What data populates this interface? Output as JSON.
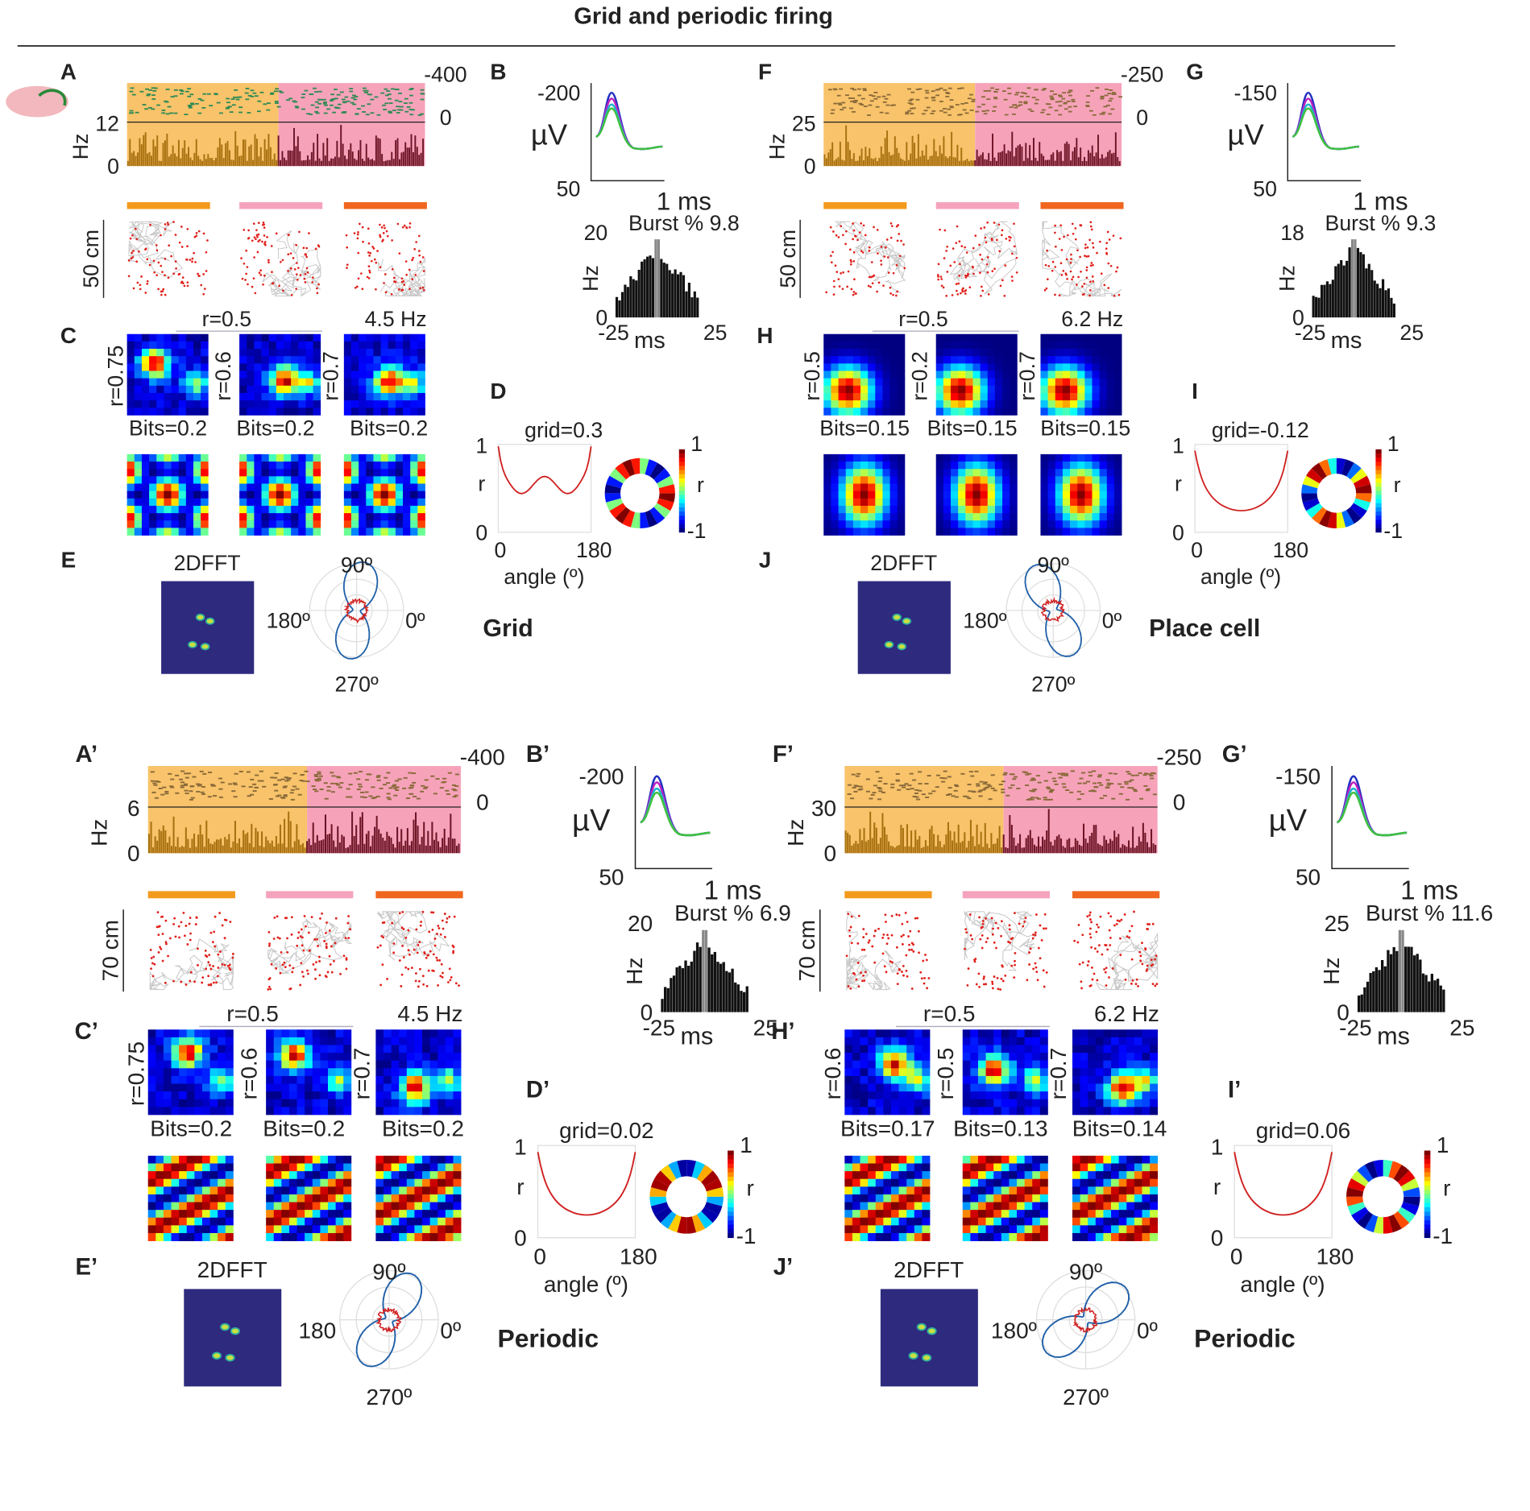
{
  "title": "Grid and periodic firing",
  "quadrants": {
    "top_left": {
      "letters": [
        "A",
        "B",
        "C",
        "D",
        "E"
      ],
      "raster": {
        "rate_ticks": [
          "12",
          "0"
        ],
        "rate_unit": "Hz",
        "volt_ticks": [
          "-400",
          "0"
        ]
      },
      "scale_bar": "50 cm",
      "waveform": {
        "ticks": [
          "-200",
          "50"
        ],
        "unit": "µV",
        "time": "1 ms"
      },
      "burst": {
        "label": "Burst % 9.8",
        "ticks": [
          "20",
          "0"
        ],
        "unit": "Hz",
        "xticks": [
          "-25",
          "25"
        ],
        "xunit": "ms"
      },
      "ratemap": {
        "r": "r=0.5",
        "rate": "4.5 Hz",
        "map_r": [
          "r=0.75",
          "r=0.6",
          "r=0.7"
        ],
        "bits": [
          "Bits=0.2",
          "Bits=0.2",
          "Bits=0.2"
        ]
      },
      "gridness": {
        "score": "grid=0.3",
        "yticks": [
          "1",
          "0"
        ],
        "ylabel": "r",
        "xticks": [
          "0",
          "180"
        ],
        "xlabel": "angle (º)",
        "colorbar": {
          "ticks": [
            "1",
            "-1"
          ],
          "label": "r"
        }
      },
      "fft": {
        "title": "2DFFT",
        "angles": [
          "90º",
          "180º",
          "0º",
          "270º"
        ]
      },
      "class": "Grid"
    },
    "top_right": {
      "letters": [
        "F",
        "G",
        "H",
        "I",
        "J"
      ],
      "raster": {
        "rate_ticks": [
          "25",
          "0"
        ],
        "rate_unit": "Hz",
        "volt_ticks": [
          "-250",
          "0"
        ]
      },
      "scale_bar": "50 cm",
      "waveform": {
        "ticks": [
          "-150",
          "50"
        ],
        "unit": "µV",
        "time": "1 ms"
      },
      "burst": {
        "label": "Burst % 9.3",
        "ticks": [
          "18",
          "0"
        ],
        "unit": "Hz",
        "xticks": [
          "-25",
          "25"
        ],
        "xunit": "ms"
      },
      "ratemap": {
        "r": "r=0.5",
        "rate": "6.2 Hz",
        "map_r": [
          "r=0.5",
          "r=0.2",
          "r=0.7"
        ],
        "bits": [
          "Bits=0.15",
          "Bits=0.15",
          "Bits=0.15"
        ]
      },
      "gridness": {
        "score": "grid=-0.12",
        "yticks": [
          "1",
          "0"
        ],
        "ylabel": "r",
        "xticks": [
          "0",
          "180"
        ],
        "xlabel": "angle (º)",
        "colorbar": {
          "ticks": [
            "1",
            "-1"
          ],
          "label": "r"
        }
      },
      "fft": {
        "title": "2DFFT",
        "angles": [
          "90º",
          "180º",
          "0º",
          "270º"
        ]
      },
      "class": "Place cell"
    },
    "bottom_left": {
      "letters": [
        "A’",
        "B’",
        "C’",
        "D’",
        "E’"
      ],
      "raster": {
        "rate_ticks": [
          "6",
          "0"
        ],
        "rate_unit": "Hz",
        "volt_ticks": [
          "-400",
          "0"
        ]
      },
      "scale_bar": "70 cm",
      "waveform": {
        "ticks": [
          "-200",
          "50"
        ],
        "unit": "µV",
        "time": "1 ms"
      },
      "burst": {
        "label": "Burst % 6.9",
        "ticks": [
          "20",
          "0"
        ],
        "unit": "Hz",
        "xticks": [
          "-25",
          "25"
        ],
        "xunit": "ms"
      },
      "ratemap": {
        "r": "r=0.5",
        "rate": "4.5 Hz",
        "map_r": [
          "r=0.75",
          "r=0.6",
          "r=0.7"
        ],
        "bits": [
          "Bits=0.2",
          "Bits=0.2",
          "Bits=0.2"
        ]
      },
      "gridness": {
        "score": "grid=0.02",
        "yticks": [
          "1",
          "0"
        ],
        "ylabel": "r",
        "xticks": [
          "0",
          "180"
        ],
        "xlabel": "angle (º)",
        "colorbar": {
          "ticks": [
            "1",
            "-1"
          ],
          "label": "r"
        }
      },
      "fft": {
        "title": "2DFFT",
        "angles": [
          "90º",
          "180",
          "0º",
          "270º"
        ]
      },
      "class": "Periodic"
    },
    "bottom_right": {
      "letters": [
        "F’",
        "G’",
        "H’",
        "I’",
        "J’"
      ],
      "raster": {
        "rate_ticks": [
          "30",
          "0"
        ],
        "rate_unit": "Hz",
        "volt_ticks": [
          "-250",
          "0"
        ]
      },
      "scale_bar": "70 cm",
      "waveform": {
        "ticks": [
          "-150",
          "50"
        ],
        "unit": "µV",
        "time": "1 ms"
      },
      "burst": {
        "label": "Burst % 11.6",
        "ticks": [
          "25",
          "0"
        ],
        "unit": "Hz",
        "xticks": [
          "-25",
          "25"
        ],
        "xunit": "ms"
      },
      "ratemap": {
        "r": "r=0.5",
        "rate": "6.2 Hz",
        "map_r": [
          "r=0.6",
          "r=0.5",
          "r=0.7"
        ],
        "bits": [
          "Bits=0.17",
          "Bits=0.13",
          "Bits=0.14"
        ]
      },
      "gridness": {
        "score": "grid=0.06",
        "yticks": [
          "1",
          "0"
        ],
        "ylabel": "r",
        "xticks": [
          "0",
          "180"
        ],
        "xlabel": "angle (º)",
        "colorbar": {
          "ticks": [
            "1",
            "-1"
          ],
          "label": "r"
        }
      },
      "fft": {
        "title": "2DFFT",
        "angles": [
          "90º",
          "180º",
          "0º",
          "270º"
        ]
      },
      "class": "Periodic"
    }
  }
}
